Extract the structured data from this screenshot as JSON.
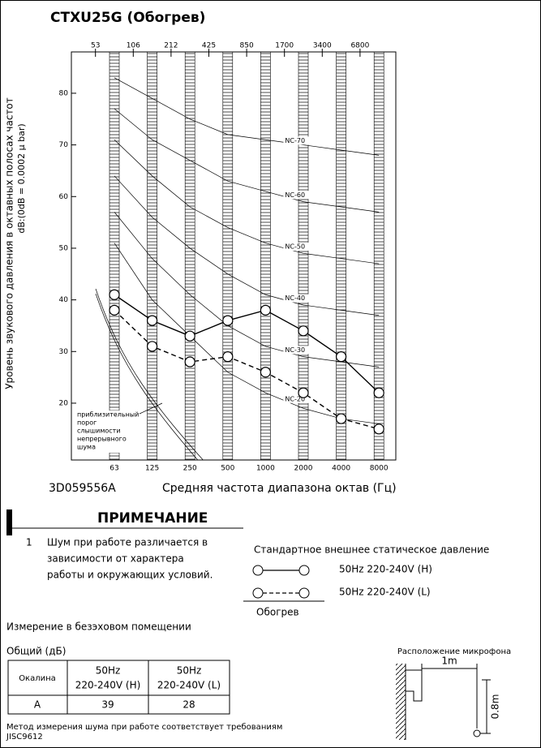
{
  "header": {
    "title": "CTXU25G (Обогрев)"
  },
  "chart_data": {
    "type": "line",
    "ylabel": "Уровень звукового давления в октавных полосах частот",
    "ylabel2": "dB:(0dB = 0.0002 μ bar)",
    "xlabel": "Средняя частота диапазона октав (Гц)",
    "code": "3D059556A",
    "categories": [
      "63",
      "125",
      "250",
      "500",
      "1000",
      "2000",
      "4000",
      "8000"
    ],
    "band_edges": [
      53,
      106,
      212,
      425,
      850,
      1700,
      3400,
      6800
    ],
    "ylim": [
      9,
      88
    ],
    "yticks": [
      20,
      30,
      40,
      50,
      60,
      70,
      80
    ],
    "series": [
      {
        "name": "50Hz 220-240V (H)",
        "color": "#000000",
        "dashed": false,
        "values": [
          41,
          36,
          33,
          36,
          38,
          34,
          29,
          22
        ]
      },
      {
        "name": "50Hz 220-240V (L)",
        "color": "#000000",
        "dashed": true,
        "values": [
          38,
          31,
          28,
          29,
          26,
          22,
          17,
          15
        ]
      }
    ],
    "nc_curves": [
      {
        "name": "NC-70",
        "values": [
          83,
          79,
          75,
          72,
          71,
          70,
          69,
          68
        ]
      },
      {
        "name": "NC-60",
        "values": [
          77,
          71,
          67,
          63,
          61,
          59,
          58,
          57
        ]
      },
      {
        "name": "NC-50",
        "values": [
          71,
          64,
          58,
          54,
          51,
          49,
          48,
          47
        ]
      },
      {
        "name": "NC-40",
        "values": [
          64,
          56,
          50,
          45,
          41,
          39,
          38,
          37
        ]
      },
      {
        "name": "NC-30",
        "values": [
          57,
          48,
          41,
          35,
          31,
          29,
          28,
          27
        ]
      },
      {
        "name": "NC-20",
        "values": [
          51,
          40,
          33,
          26,
          22,
          19,
          17,
          16
        ]
      }
    ],
    "threshold_label": [
      "приблизительный",
      "порог",
      "слышимости",
      "непрерывного",
      "шума"
    ],
    "legend_title": "Стандартное внешнее статическое давление",
    "legend_caption": "Обогрев"
  },
  "note": {
    "heading": "ПРИМЕЧАНИЕ",
    "number": "1",
    "lines": [
      "Шум при работе различается в",
      "зависимости от характера",
      "работы и окружающих условий."
    ]
  },
  "measurement": "Измерение в безэховом помещении",
  "table": {
    "caption": "Общий (дБ)",
    "header": [
      [
        "Окалина"
      ],
      [
        "50Hz",
        "220-240V (H)"
      ],
      [
        "50Hz",
        "220-240V (L)"
      ]
    ],
    "rows": [
      [
        "A",
        "39",
        "28"
      ]
    ]
  },
  "footer": [
    "Метод измерения шума при работе соответствует требованиям",
    "JISC9612"
  ],
  "mic": {
    "title": "Расположение микрофона",
    "distance": "1m",
    "height": "0.8m"
  }
}
